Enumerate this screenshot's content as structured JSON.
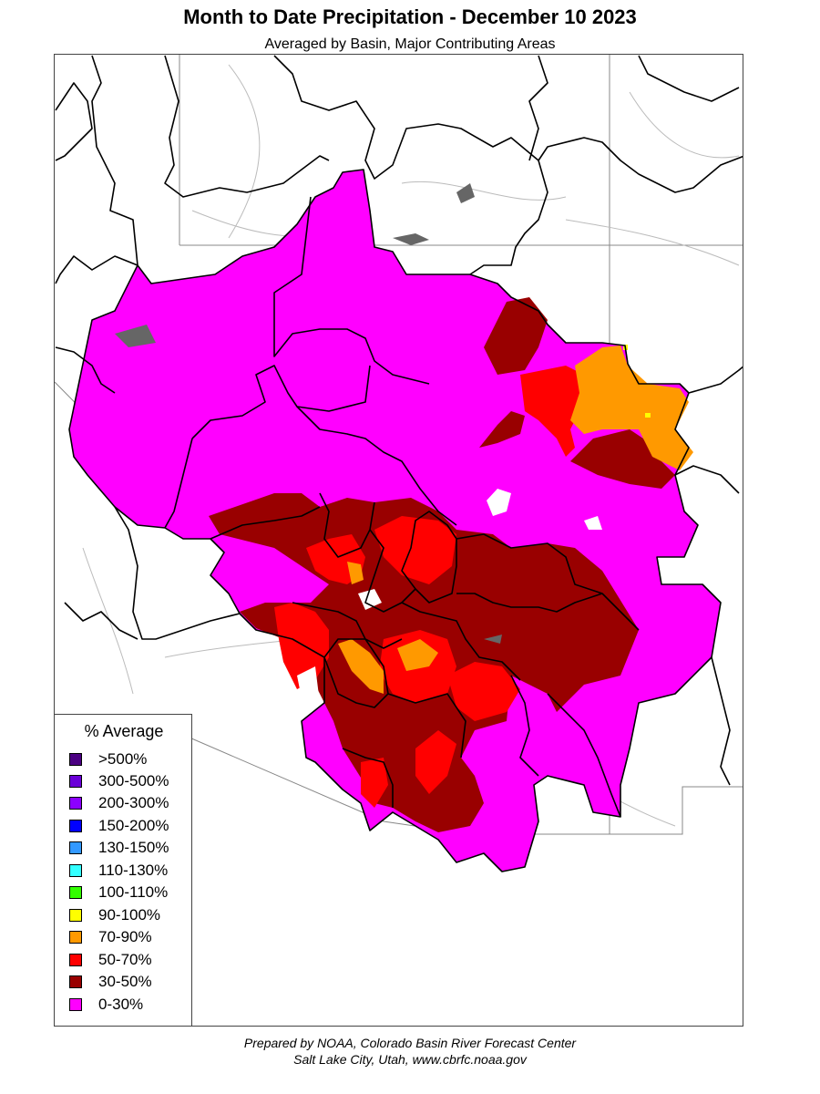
{
  "title": "Month to Date Precipitation - December 10 2023",
  "subtitle": "Averaged by Basin, Major Contributing Areas",
  "legend": {
    "title": "% Average",
    "items": [
      {
        "label": ">500%",
        "color": "#4b0082"
      },
      {
        "label": "300-500%",
        "color": "#6a00d8"
      },
      {
        "label": "200-300%",
        "color": "#8c00ff"
      },
      {
        "label": "150-200%",
        "color": "#0000ff"
      },
      {
        "label": "130-150%",
        "color": "#3399ff"
      },
      {
        "label": "110-130%",
        "color": "#33ffff"
      },
      {
        "label": "100-110%",
        "color": "#33ff00"
      },
      {
        "label": "90-100%",
        "color": "#ffff00"
      },
      {
        "label": "70-90%",
        "color": "#ff9900"
      },
      {
        "label": "50-70%",
        "color": "#ff0000"
      },
      {
        "label": "30-50%",
        "color": "#990000"
      },
      {
        "label": "0-30%",
        "color": "#ff00ff"
      }
    ]
  },
  "credit": {
    "line1": "Prepared by NOAA, Colorado Basin River Forecast Center",
    "line2": "Salt Lake City, Utah, www.cbrfc.noaa.gov"
  }
}
